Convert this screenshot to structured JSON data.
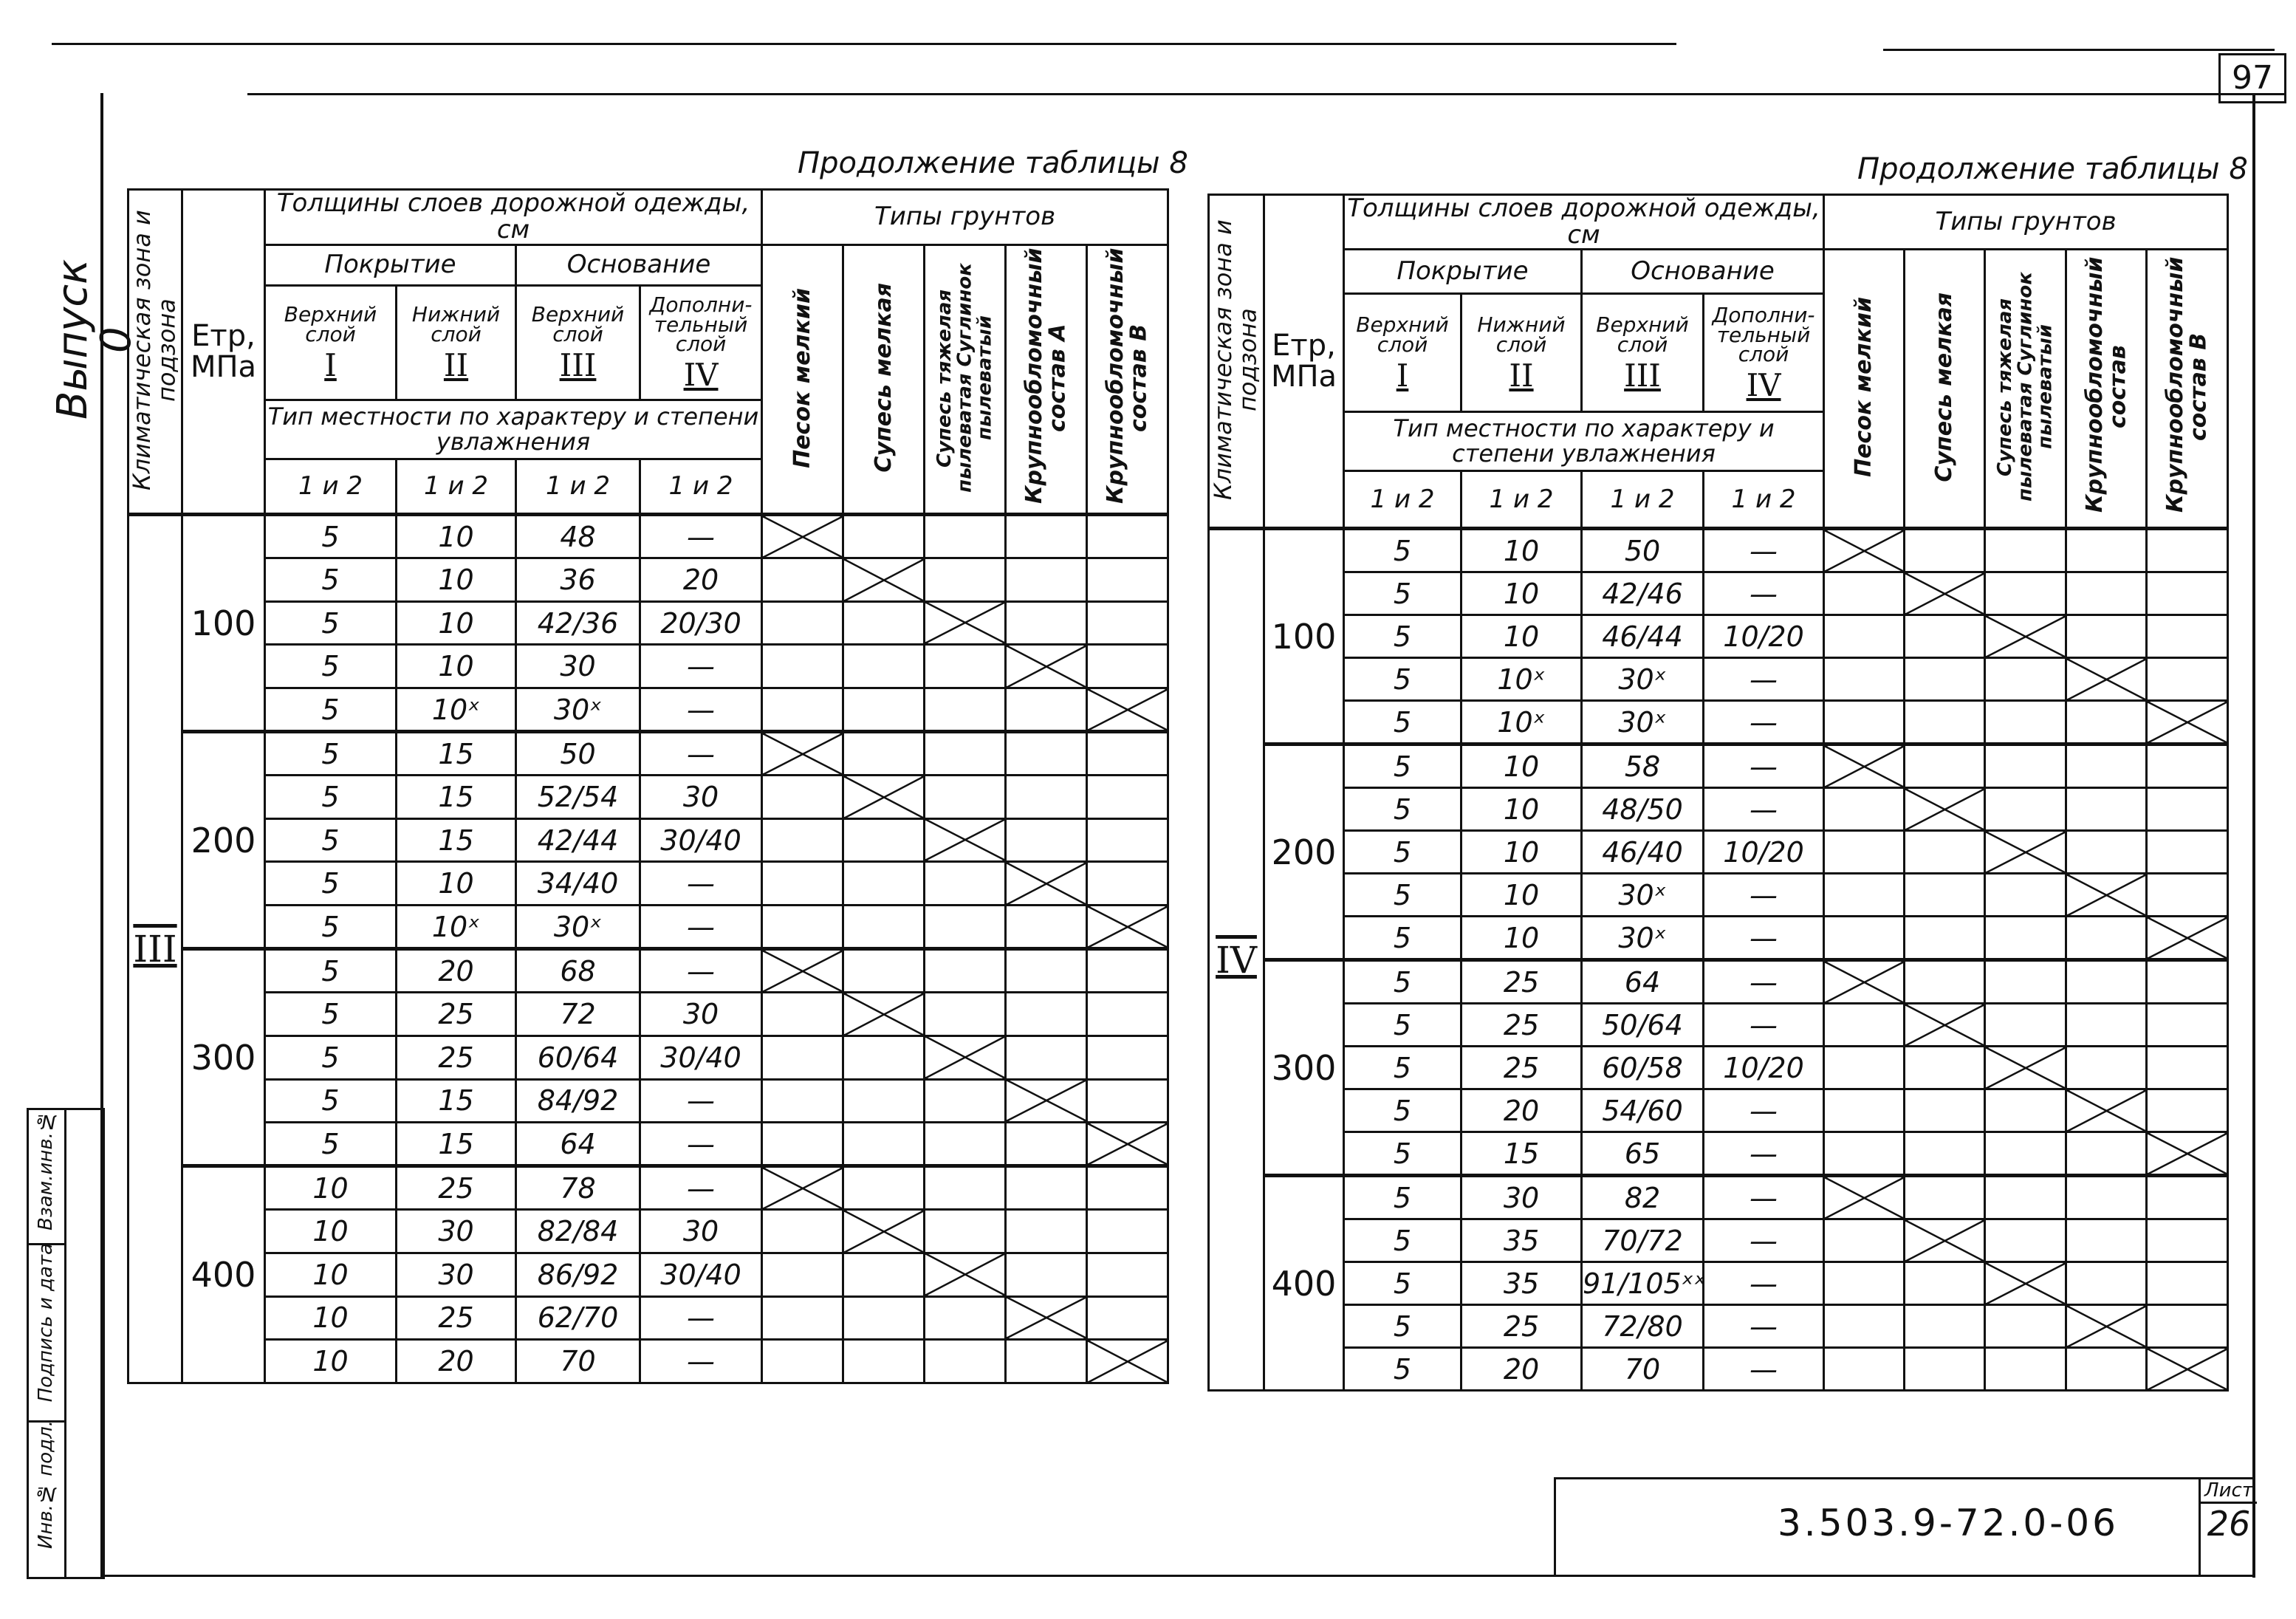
{
  "page_number": "97",
  "side_label": "Выпуск 0",
  "stamp": [
    "Инв.№ подл.",
    "Подпись и дата",
    "Взам.инв.№"
  ],
  "title_block": {
    "code": "3.503.9-72.0-06",
    "sheet_label": "Лист",
    "sheet_number": "26"
  },
  "tables": [
    {
      "caption": "Продолжение таблицы 8",
      "header": {
        "zone": "Климатическая зона и подзона",
        "etr": "Eтр, МПа",
        "thickness": "Толщины слоев дорожной одежды, см",
        "soils_title": "Типы грунтов",
        "cover": "Покрытие",
        "base": "Основание",
        "layers": [
          {
            "name": "Верхний слой",
            "num": "I"
          },
          {
            "name": "Нижний слой",
            "num": "II"
          },
          {
            "name": "Верхний слой",
            "num": "III"
          },
          {
            "name": "Дополни-тельный слой",
            "num": "IV"
          }
        ],
        "terrain": "Тип местности по характеру и степени увлажнения",
        "terrain_types": [
          "1 и 2",
          "1 и 2",
          "1 и 2",
          "1 и 2"
        ],
        "soils": [
          "Песок мелкий",
          "Супесь мелкая",
          "Супесь тяжелая пылеватая Суглинок пылеватый",
          "Крупнообломочный состав А",
          "Крупнообломочный состав В"
        ]
      },
      "zone": "III",
      "groups": [
        {
          "etr": "100",
          "rows": [
            [
              "5",
              "10",
              "48",
              "—"
            ],
            [
              "5",
              "10",
              "36",
              "20"
            ],
            [
              "5",
              "10",
              "42/36",
              "20/30"
            ],
            [
              "5",
              "10",
              "30",
              "—"
            ],
            [
              "5",
              "10ˣ",
              "30ˣ",
              "—"
            ]
          ]
        },
        {
          "etr": "200",
          "rows": [
            [
              "5",
              "15",
              "50",
              "—"
            ],
            [
              "5",
              "15",
              "52/54",
              "30"
            ],
            [
              "5",
              "15",
              "42/44",
              "30/40"
            ],
            [
              "5",
              "10",
              "34/40",
              "—"
            ],
            [
              "5",
              "10ˣ",
              "30ˣ",
              "—"
            ]
          ]
        },
        {
          "etr": "300",
          "rows": [
            [
              "5",
              "20",
              "68",
              "—"
            ],
            [
              "5",
              "25",
              "72",
              "30"
            ],
            [
              "5",
              "25",
              "60/64",
              "30/40"
            ],
            [
              "5",
              "15",
              "84/92",
              "—"
            ],
            [
              "5",
              "15",
              "64",
              "—"
            ]
          ]
        },
        {
          "etr": "400",
          "rows": [
            [
              "10",
              "25",
              "78",
              "—"
            ],
            [
              "10",
              "30",
              "82/84",
              "30"
            ],
            [
              "10",
              "30",
              "86/92",
              "30/40"
            ],
            [
              "10",
              "25",
              "62/70",
              "—"
            ],
            [
              "10",
              "20",
              "70",
              "—"
            ]
          ]
        }
      ]
    },
    {
      "caption": "Продолжение таблицы 8",
      "header": {
        "zone": "Климатическая зона и подзона",
        "etr": "Eтр, МПа",
        "thickness": "Толщины слоев дорожной одежды, см",
        "soils_title": "Типы грунтов",
        "cover": "Покрытие",
        "base": "Основание",
        "layers": [
          {
            "name": "Верхний слой",
            "num": "I"
          },
          {
            "name": "Нижний слой",
            "num": "II"
          },
          {
            "name": "Верхний слой",
            "num": "III"
          },
          {
            "name": "Дополни-тельный слой",
            "num": "IV"
          }
        ],
        "terrain": "Тип местности по характеру и степени увлажнения",
        "terrain_types": [
          "1 и 2",
          "1 и 2",
          "1 и 2",
          "1 и 2"
        ],
        "soils": [
          "Песок мелкий",
          "Супесь мелкая",
          "Супесь тяжелая пылеватая Суглинок пылеватый",
          "Крупнообломочный состав",
          "Крупнообломочный состав В"
        ]
      },
      "zone": "IV",
      "groups": [
        {
          "etr": "100",
          "rows": [
            [
              "5",
              "10",
              "50",
              "—"
            ],
            [
              "5",
              "10",
              "42/46",
              "—"
            ],
            [
              "5",
              "10",
              "46/44",
              "10/20"
            ],
            [
              "5",
              "10ˣ",
              "30ˣ",
              "—"
            ],
            [
              "5",
              "10ˣ",
              "30ˣ",
              "—"
            ]
          ]
        },
        {
          "etr": "200",
          "rows": [
            [
              "5",
              "10",
              "58",
              "—"
            ],
            [
              "5",
              "10",
              "48/50",
              "—"
            ],
            [
              "5",
              "10",
              "46/40",
              "10/20"
            ],
            [
              "5",
              "10",
              "30ˣ",
              "—"
            ],
            [
              "5",
              "10",
              "30ˣ",
              "—"
            ]
          ]
        },
        {
          "etr": "300",
          "rows": [
            [
              "5",
              "25",
              "64",
              "—"
            ],
            [
              "5",
              "25",
              "50/64",
              "—"
            ],
            [
              "5",
              "25",
              "60/58",
              "10/20"
            ],
            [
              "5",
              "20",
              "54/60",
              "—"
            ],
            [
              "5",
              "15",
              "65",
              "—"
            ]
          ]
        },
        {
          "etr": "400",
          "rows": [
            [
              "5",
              "30",
              "82",
              "—"
            ],
            [
              "5",
              "35",
              "70/72",
              "—"
            ],
            [
              "5",
              "35",
              "91/105ˣˣ",
              "—"
            ],
            [
              "5",
              "25",
              "72/80",
              "—"
            ],
            [
              "5",
              "20",
              "70",
              "—"
            ]
          ]
        }
      ]
    }
  ]
}
